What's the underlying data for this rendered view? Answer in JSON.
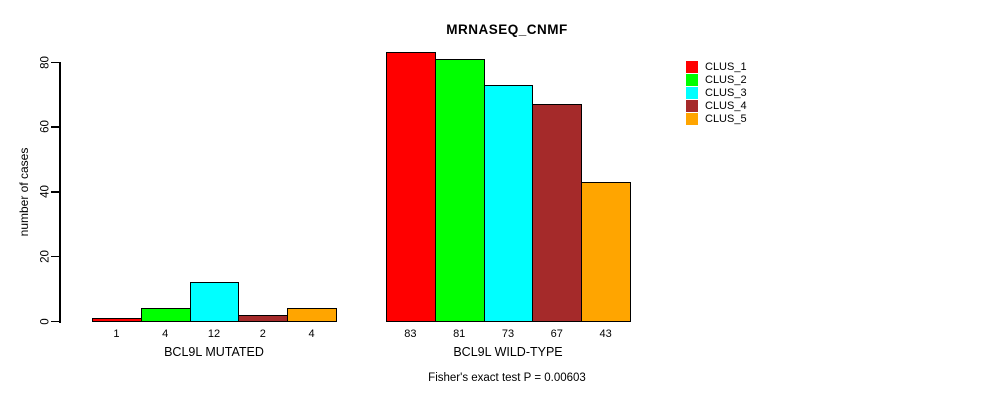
{
  "title": "MRNASEQ_CNMF",
  "caption": "Fisher's exact test P = 0.00603",
  "y_axis": {
    "label": "number of cases",
    "ticks": [
      0,
      20,
      40,
      60,
      80
    ]
  },
  "legend": {
    "entries": [
      {
        "label": "CLUS_1",
        "color": "#FF0000"
      },
      {
        "label": "CLUS_2",
        "color": "#00FF00"
      },
      {
        "label": "CLUS_3",
        "color": "#00FFFF"
      },
      {
        "label": "CLUS_4",
        "color": "#A52A2A"
      },
      {
        "label": "CLUS_5",
        "color": "#FFA500"
      }
    ]
  },
  "chart_data": {
    "type": "bar",
    "title": "MRNASEQ_CNMF",
    "xlabel": "",
    "ylabel": "number of cases",
    "ylim": [
      0,
      80
    ],
    "grid": false,
    "legend_position": "top-right-outside",
    "categories": [
      "BCL9L MUTATED",
      "BCL9L WILD-TYPE"
    ],
    "series": [
      {
        "name": "CLUS_1",
        "color": "#FF0000",
        "values": [
          1,
          83
        ]
      },
      {
        "name": "CLUS_2",
        "color": "#00FF00",
        "values": [
          4,
          81
        ]
      },
      {
        "name": "CLUS_3",
        "color": "#00FFFF",
        "values": [
          12,
          73
        ]
      },
      {
        "name": "CLUS_4",
        "color": "#A52A2A",
        "values": [
          2,
          67
        ]
      },
      {
        "name": "CLUS_5",
        "color": "#FFA500",
        "values": [
          4,
          43
        ]
      }
    ],
    "bar_value_labels": [
      [
        "1",
        "4",
        "12",
        "2",
        "4"
      ],
      [
        "83",
        "81",
        "73",
        "67",
        "43"
      ]
    ],
    "annotation": "Fisher's exact test P = 0.00603"
  }
}
